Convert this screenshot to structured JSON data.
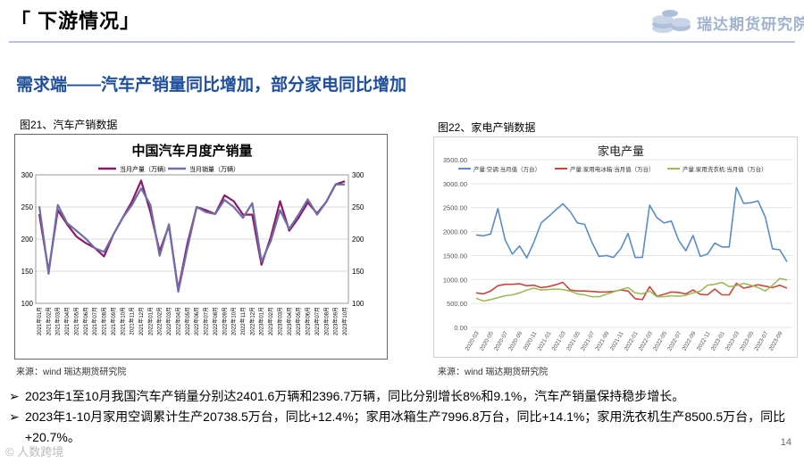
{
  "slide": {
    "title": "「 下游情况」",
    "logo_text": "瑞达期货研究院",
    "subtitle": "需求端——汽车产销量同比增加，部分家电同比增加",
    "page_number": "14",
    "watermark": "© 人数跨境"
  },
  "colors": {
    "subtitle": "#1f4e9a",
    "car_production": "#8b1a6b",
    "car_sales": "#6f6fa8",
    "ac": "#5b8cc4",
    "fridge": "#c8463c",
    "washer": "#9dbb59",
    "header_line": "#b7c4d8"
  },
  "figures": [
    {
      "caption": "图21、汽车产销数据",
      "source": "来源：wind   瑞达期货研究院"
    },
    {
      "caption": "图22、家电产销数据",
      "source": "来源：wind   瑞达期货研究院"
    }
  ],
  "bullets": [
    "2023年1至10月我国汽车产销量分别达2401.6万辆和2396.7万辆，同比分别增长8%和9.1%，汽车产销量保持稳步增长。",
    "2023年1-10月家用空调累计生产20738.5万台，同比+12.4%；家用冰箱生产7996.8万台，同比+14.1%；家用洗衣机生产8500.5万台，同比+20.7%。"
  ],
  "chart_data": [
    {
      "type": "line",
      "title": "中国汽车月度产销量",
      "xlabel": "",
      "ylabel": "",
      "ylim": [
        100,
        300
      ],
      "y_ticks": [
        100,
        150,
        200,
        250,
        300
      ],
      "grid": true,
      "legend": "top-center",
      "categories": [
        "2021年01月",
        "2021年02月",
        "2021年03月",
        "2021年04月",
        "2021年05月",
        "2021年06月",
        "2021年07月",
        "2021年08月",
        "2021年09月",
        "2021年10月",
        "2021年11月",
        "2021年12月",
        "2022年01月",
        "2022年02月",
        "2022年03月",
        "2022年04月",
        "2022年05月",
        "2022年06月",
        "2022年07月",
        "2022年08月",
        "2022年09月",
        "2022年10月",
        "2022年11月",
        "2022年12月",
        "2023年01月",
        "2023年02月",
        "2023年03月",
        "2023年04月",
        "2023年05月",
        "2023年06月",
        "2023年07月",
        "2023年08月",
        "2023年09月",
        "2023年10月"
      ],
      "series": [
        {
          "name": "当月产量（万辆）",
          "values": [
            239,
            150,
            245,
            223,
            204,
            194,
            186,
            173,
            207,
            233,
            258,
            291,
            242,
            181,
            221,
            121,
            193,
            250,
            245,
            239,
            268,
            259,
            238,
            238,
            160,
            203,
            259,
            213,
            233,
            257,
            240,
            258,
            285,
            290
          ]
        },
        {
          "name": "当月销量（万辆）",
          "values": [
            251,
            146,
            253,
            225,
            213,
            201,
            186,
            180,
            207,
            233,
            253,
            279,
            253,
            174,
            223,
            118,
            186,
            250,
            242,
            239,
            261,
            250,
            233,
            256,
            165,
            197,
            245,
            216,
            238,
            262,
            238,
            258,
            285,
            285
          ]
        }
      ]
    },
    {
      "type": "line",
      "title": "家电产量",
      "xlabel": "",
      "ylabel": "",
      "ylim": [
        0,
        3500
      ],
      "y_ticks": [
        0,
        500,
        1000,
        1500,
        2000,
        2500,
        3000,
        3500
      ],
      "y_tick_labels": [
        "0.00",
        "500.00",
        "1000.00",
        "1500.00",
        "2000.00",
        "2500.00",
        "3000.00",
        "3500.00"
      ],
      "grid": true,
      "legend": "top",
      "x_tick_labels": [
        "2020-03",
        "2020-05",
        "2020-07",
        "2020-09",
        "2020-11",
        "2021-01",
        "2021-03",
        "2021-05",
        "2021-07",
        "2021-09",
        "2021-11",
        "2022-01",
        "2022-03",
        "2022-05",
        "2022-07",
        "2022-09",
        "2022-11",
        "2023-01",
        "2023-03",
        "2023-05",
        "2023-07",
        "2023-09"
      ],
      "x_tick_every": 2,
      "series": [
        {
          "name": "产量:空调:当月值（万台）",
          "values": [
            1930,
            1910,
            1950,
            2480,
            1830,
            1530,
            1700,
            1450,
            1780,
            2180,
            2310,
            2450,
            2580,
            2420,
            2180,
            2150,
            1780,
            1480,
            1500,
            1460,
            1640,
            1960,
            1460,
            1460,
            2550,
            2290,
            2180,
            2220,
            1820,
            1600,
            1920,
            1480,
            1530,
            1760,
            1680,
            1680,
            2920,
            2590,
            2600,
            2640,
            2300,
            1640,
            1620,
            1370
          ]
        },
        {
          "name": "产量:家用电冰箱:当月值（万台）",
          "values": [
            720,
            700,
            760,
            870,
            900,
            900,
            910,
            870,
            880,
            830,
            850,
            890,
            940,
            780,
            760,
            760,
            750,
            740,
            740,
            750,
            780,
            760,
            600,
            580,
            850,
            650,
            690,
            740,
            730,
            700,
            780,
            690,
            680,
            800,
            680,
            680,
            920,
            820,
            850,
            890,
            860,
            830,
            880,
            820
          ]
        },
        {
          "name": "产量:家用洗衣机:当月值（万台）",
          "values": [
            610,
            550,
            580,
            620,
            660,
            680,
            720,
            780,
            820,
            780,
            790,
            800,
            790,
            760,
            700,
            680,
            640,
            640,
            690,
            740,
            790,
            830,
            720,
            700,
            760,
            640,
            640,
            660,
            650,
            670,
            720,
            760,
            880,
            900,
            940,
            850,
            870,
            920,
            880,
            830,
            760,
            880,
            1020,
            990
          ]
        }
      ]
    }
  ]
}
